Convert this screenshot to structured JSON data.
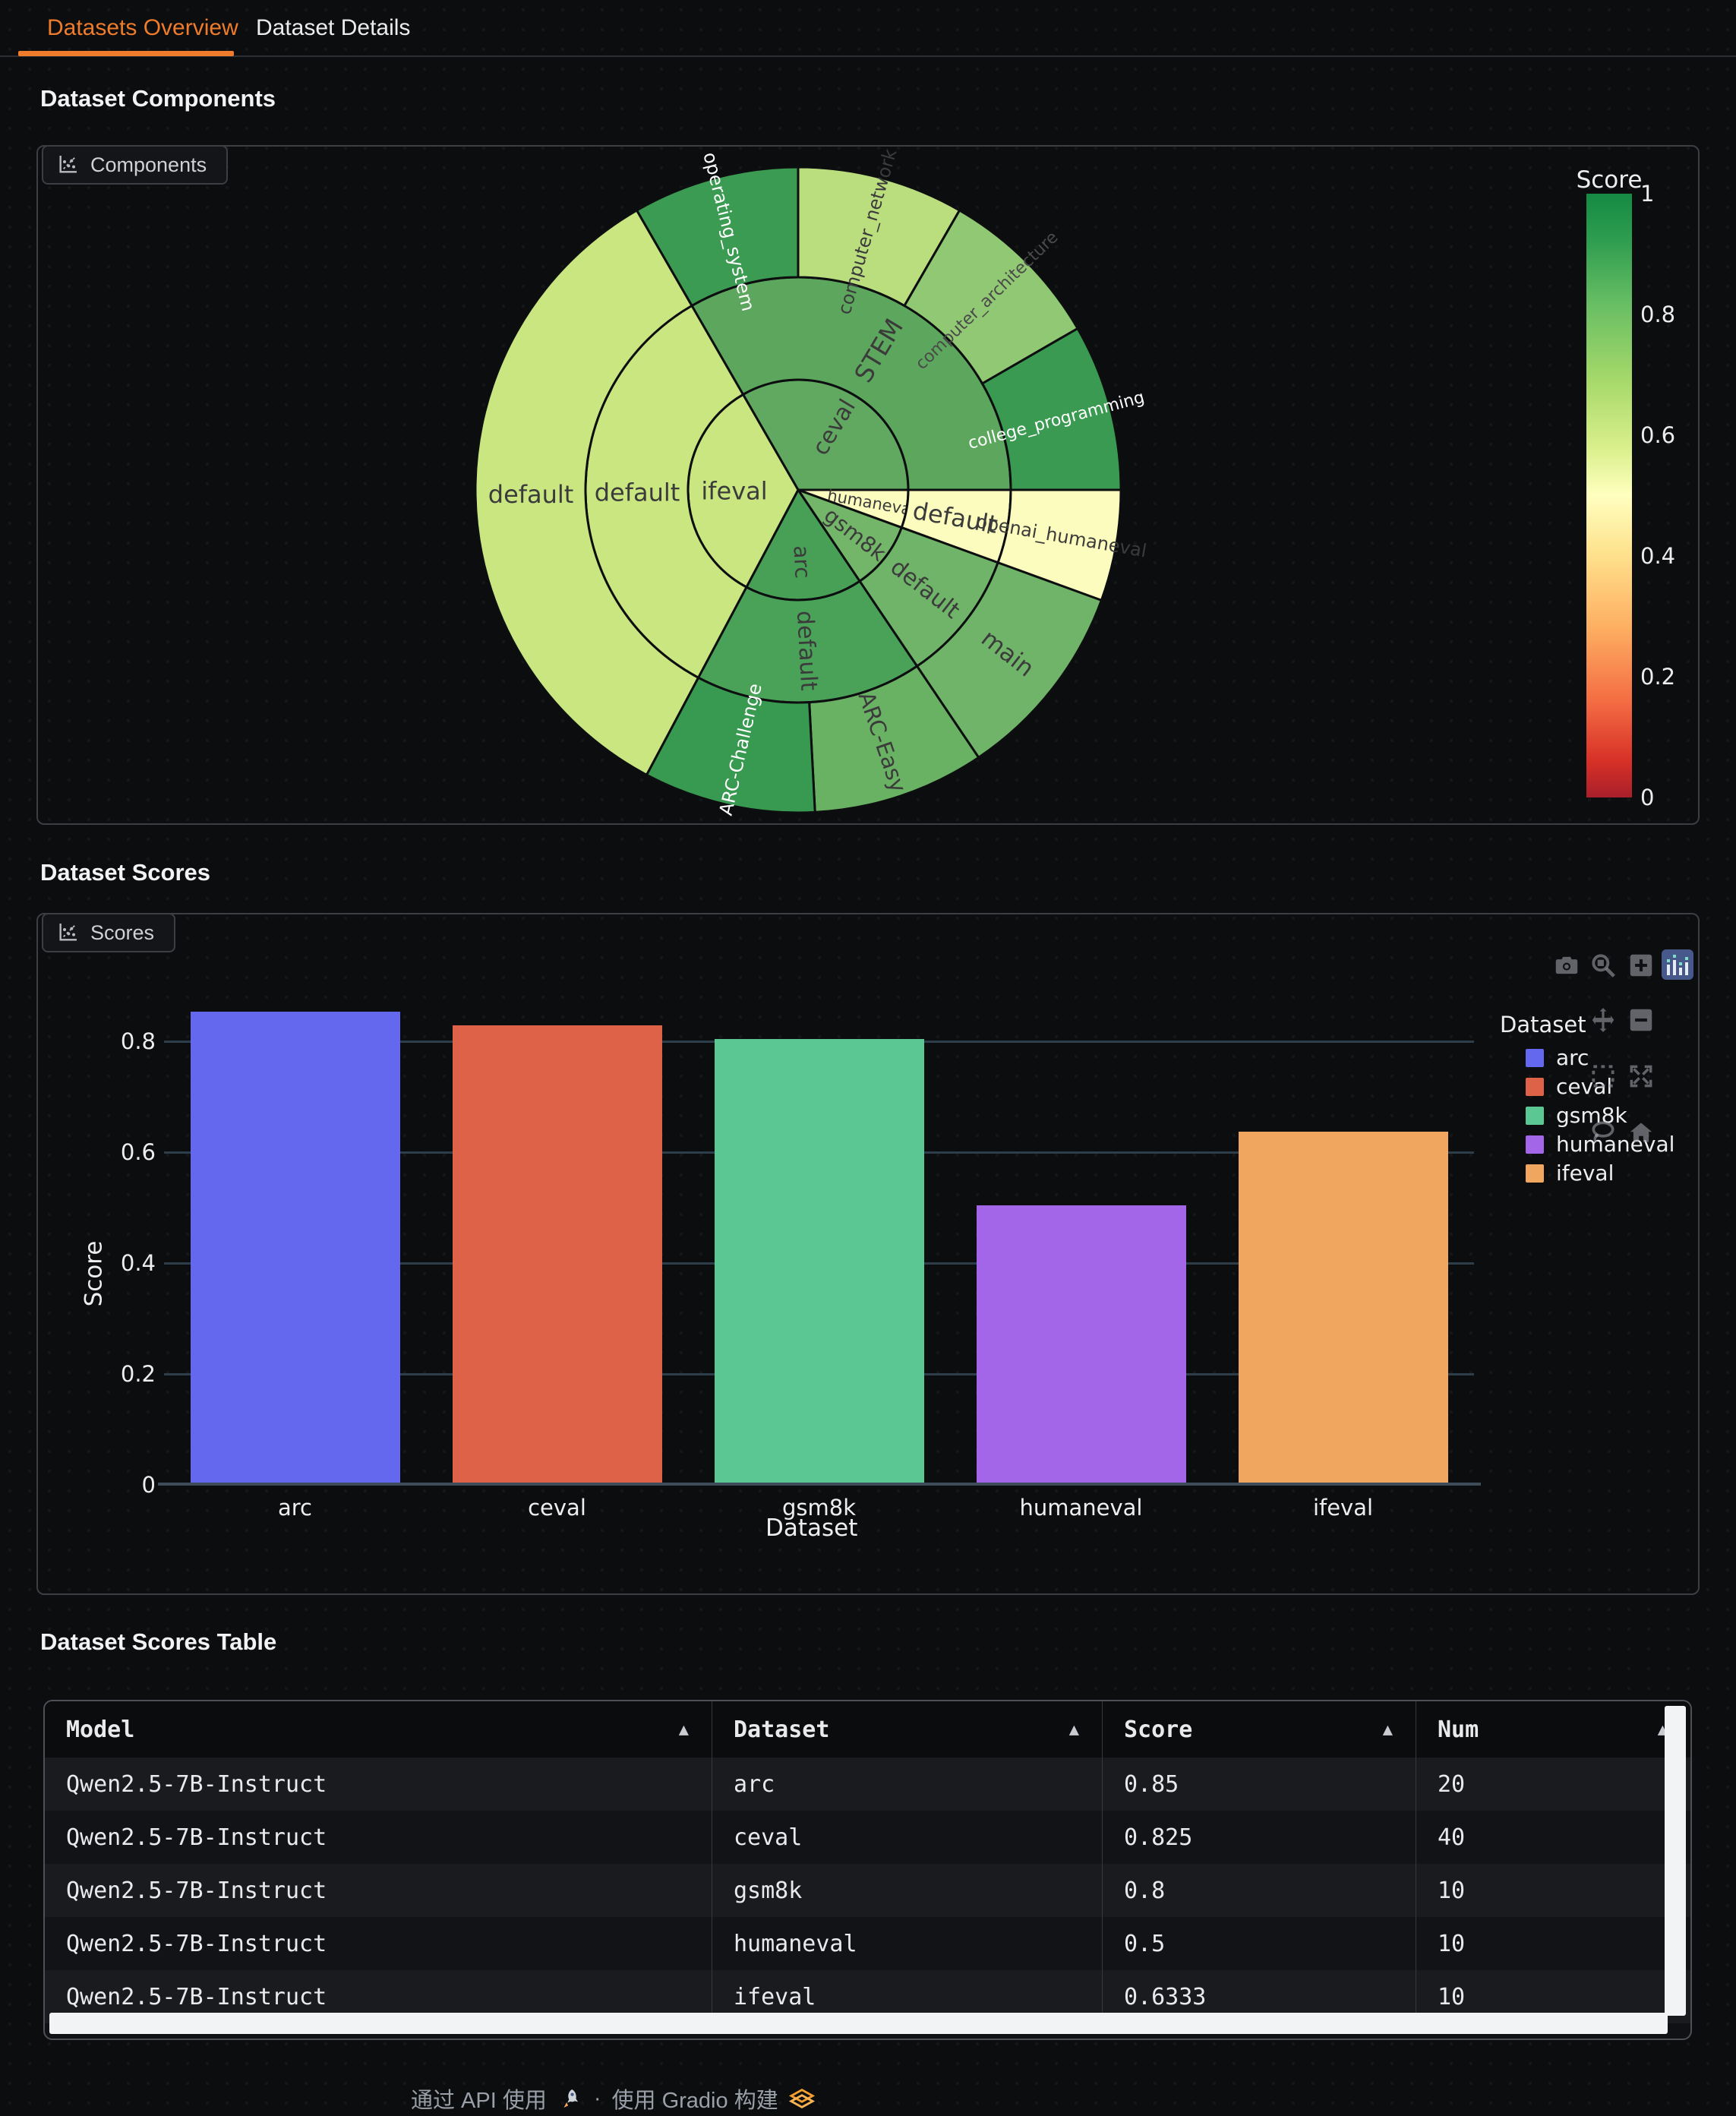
{
  "tabbar": {
    "tabs": [
      {
        "label": "Datasets Overview",
        "active": true
      },
      {
        "label": "Dataset Details",
        "active": false
      }
    ]
  },
  "sections": {
    "components": {
      "heading": "Dataset Components",
      "panel_tab": "Components"
    },
    "scores": {
      "heading": "Dataset Scores",
      "panel_tab": "Scores"
    },
    "table": {
      "heading": "Dataset Scores Table"
    }
  },
  "chart_data": [
    {
      "type": "sunburst",
      "title": "Dataset Components",
      "colorbar": {
        "title": "Score",
        "min": 0,
        "max": 1,
        "ticks": [
          "1",
          "0.8",
          "0.6",
          "0.4",
          "0.2",
          "0"
        ],
        "colormap": "RdYlGn"
      },
      "hierarchy": [
        {
          "name": "ceval",
          "score": 0.825,
          "children": [
            {
              "name": "STEM",
              "children": [
                {
                  "name": "operating_system"
                },
                {
                  "name": "computer_network"
                },
                {
                  "name": "computer_architecture"
                },
                {
                  "name": "college_programming"
                }
              ]
            }
          ]
        },
        {
          "name": "humaneval",
          "score": 0.5,
          "children": [
            {
              "name": "default",
              "children": [
                {
                  "name": "openai_humaneval"
                }
              ]
            }
          ]
        },
        {
          "name": "gsm8k",
          "score": 0.8,
          "children": [
            {
              "name": "default",
              "children": [
                {
                  "name": "main"
                }
              ]
            }
          ]
        },
        {
          "name": "arc",
          "score": 0.85,
          "children": [
            {
              "name": "default",
              "children": [
                {
                  "name": "ARC-Easy"
                },
                {
                  "name": "ARC-Challenge"
                }
              ]
            }
          ]
        },
        {
          "name": "ifeval",
          "score": 0.6333,
          "children": [
            {
              "name": "default",
              "children": [
                {
                  "name": "default"
                }
              ]
            }
          ]
        }
      ],
      "slices": [
        {
          "label": "ceval",
          "ring": 0,
          "a0": -30,
          "a1": 90,
          "fill": "#61a960",
          "lr": 95,
          "rot": -59,
          "fs": 30,
          "tc": "#3b3b3b"
        },
        {
          "label": "humaneval",
          "ring": 0,
          "a0": 90,
          "a1": 110,
          "fill": "#fbfcbd",
          "lr": 98,
          "rot": 10,
          "fs": 21,
          "tc": "#3b3b3b"
        },
        {
          "label": "gsm8k",
          "ring": 0,
          "a0": 110,
          "a1": 146,
          "fill": "#74b669",
          "lr": 95,
          "rot": 38,
          "fs": 28,
          "tc": "#3b3b3b"
        },
        {
          "label": "arc",
          "ring": 0,
          "a0": 146,
          "a1": 208,
          "fill": "#47a056",
          "lr": 95,
          "rot": 87,
          "fs": 28,
          "tc": "#3b3b3b"
        },
        {
          "label": "ifeval",
          "ring": 0,
          "a0": 208,
          "a1": 330,
          "fill": "#c9e681",
          "lr": 84,
          "rot": 0,
          "fs": 32,
          "tc": "#3b3b3b"
        },
        {
          "label": "STEM",
          "ring": 1,
          "a0": -30,
          "a1": 90,
          "fill": "#5ca75d",
          "lr": 212,
          "rot": -59,
          "fs": 33,
          "tc": "#3b3b3b"
        },
        {
          "label": "default",
          "ring": 1,
          "a0": 90,
          "a1": 110,
          "fill": "#fbfcbd",
          "lr": 210,
          "rot": 10,
          "fs": 32,
          "tc": "#3b3b3b"
        },
        {
          "label": "default",
          "ring": 1,
          "a0": 110,
          "a1": 146,
          "fill": "#6fb468",
          "lr": 212,
          "rot": 38,
          "fs": 30,
          "tc": "#3b3b3b"
        },
        {
          "label": "default",
          "ring": 1,
          "a0": 146,
          "a1": 208,
          "fill": "#4aa158",
          "lr": 212,
          "rot": 87,
          "fs": 30,
          "tc": "#3b3b3b"
        },
        {
          "label": "default",
          "ring": 1,
          "a0": 208,
          "a1": 330,
          "fill": "#c9e681",
          "lr": 212,
          "rot": 0,
          "fs": 32,
          "tc": "#3b3b3b"
        },
        {
          "label": "operating_system",
          "ring": 2,
          "a0": -30,
          "a1": 0,
          "fill": "#3c9b52",
          "lr": 352,
          "rot": 76,
          "fs": 24,
          "tc": "#ffffff"
        },
        {
          "label": "computer_network",
          "ring": 2,
          "a0": 0,
          "a1": 30,
          "fill": "#bade7e",
          "lr": 352,
          "rot": -74,
          "fs": 24,
          "tc": "#3b3b3b"
        },
        {
          "label": "computer_architecture",
          "ring": 2,
          "a0": 30,
          "a1": 60,
          "fill": "#90c873",
          "lr": 352,
          "rot": -44,
          "fs": 22,
          "tc": "#4a4a4a"
        },
        {
          "label": "college_programming",
          "ring": 2,
          "a0": 60,
          "a1": 90,
          "fill": "#3a9a51",
          "lr": 352,
          "rot": -15,
          "fs": 22,
          "tc": "#ffffff"
        },
        {
          "label": "openai_humaneval",
          "ring": 2,
          "a0": 90,
          "a1": 110,
          "fill": "#fbfcbd",
          "lr": 352,
          "rot": 10,
          "fs": 24,
          "tc": "#3b3b3b"
        },
        {
          "label": "main",
          "ring": 2,
          "a0": 110,
          "a1": 146,
          "fill": "#6fb468",
          "lr": 350,
          "rot": 38,
          "fs": 31,
          "tc": "#3b3b3b"
        },
        {
          "label": "ARC-Easy",
          "ring": 2,
          "a0": 146,
          "a1": 177,
          "fill": "#69b163",
          "lr": 350,
          "rot": 71,
          "fs": 29,
          "tc": "#3b3b3b"
        },
        {
          "label": "ARC-Challenge",
          "ring": 2,
          "a0": 177,
          "a1": 208,
          "fill": "#389950",
          "lr": 350,
          "rot": -77,
          "fs": 24,
          "tc": "#ffffff"
        },
        {
          "label": "default",
          "ring": 2,
          "a0": 208,
          "a1": 330,
          "fill": "#c9e681",
          "lr": 352,
          "rot": 0,
          "fs": 32,
          "tc": "#3b3b3b"
        }
      ]
    },
    {
      "type": "bar",
      "categories": [
        "arc",
        "ceval",
        "gsm8k",
        "humaneval",
        "ifeval"
      ],
      "values": [
        0.85,
        0.825,
        0.8,
        0.5,
        0.6333
      ],
      "colors": [
        "#6468ef",
        "#de6247",
        "#5bc893",
        "#a466e9",
        "#f1a65f"
      ],
      "xlabel": "Dataset",
      "ylabel": "Score",
      "yticks": [
        "0",
        "0.2",
        "0.4",
        "0.6",
        "0.8"
      ],
      "ytick_values": [
        0,
        0.2,
        0.4,
        0.6,
        0.8
      ],
      "ylim": [
        0,
        0.89
      ],
      "grid": true,
      "legend": {
        "title": "Dataset",
        "position": "right",
        "entries": [
          {
            "label": "arc",
            "color": "#6468ef"
          },
          {
            "label": "ceval",
            "color": "#de6247"
          },
          {
            "label": "gsm8k",
            "color": "#5bc893"
          },
          {
            "label": "humaneval",
            "color": "#a466e9"
          },
          {
            "label": "ifeval",
            "color": "#f1a65f"
          }
        ]
      }
    }
  ],
  "modebar": {
    "icons": [
      "camera",
      "zoom",
      "zoom-in",
      "logo",
      "pan",
      "zoom-out",
      "box-select",
      "autoscale",
      "lasso",
      "home"
    ]
  },
  "table": {
    "columns": [
      "Model",
      "Dataset",
      "Score",
      "Num"
    ],
    "rows": [
      [
        "Qwen2.5-7B-Instruct",
        "arc",
        "0.85",
        "20"
      ],
      [
        "Qwen2.5-7B-Instruct",
        "ceval",
        "0.825",
        "40"
      ],
      [
        "Qwen2.5-7B-Instruct",
        "gsm8k",
        "0.8",
        "10"
      ],
      [
        "Qwen2.5-7B-Instruct",
        "humaneval",
        "0.5",
        "10"
      ],
      [
        "Qwen2.5-7B-Instruct",
        "ifeval",
        "0.6333",
        "10"
      ]
    ]
  },
  "footer": {
    "api_label": "通过 API 使用",
    "separator": "·",
    "built_label": "使用 Gradio 构建"
  }
}
